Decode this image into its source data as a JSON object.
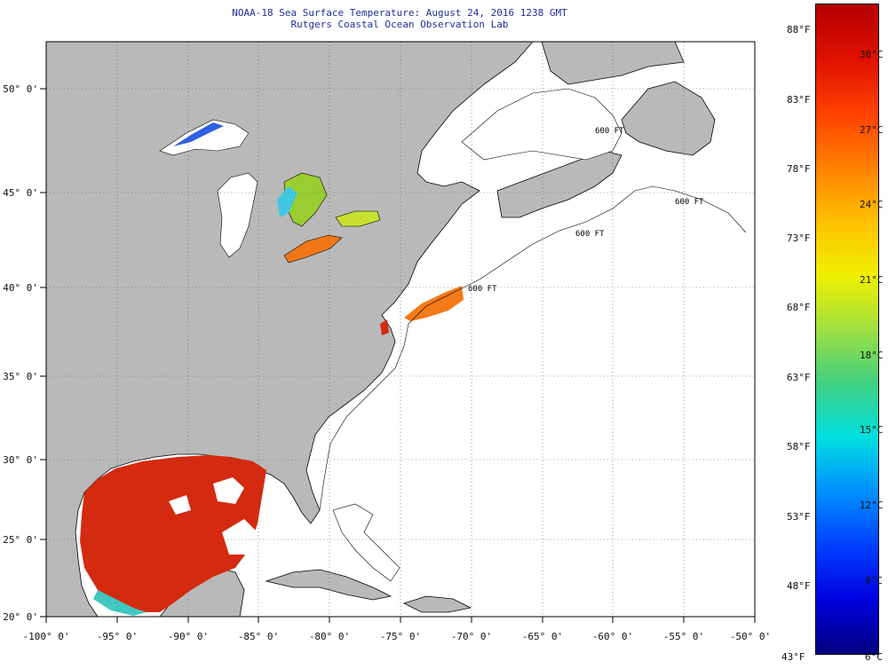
{
  "title": {
    "line1": "NOAA-18 Sea Surface Temperature:  August 24, 2016 1238 GMT",
    "line2": "Rutgers Coastal Ocean Observation Lab"
  },
  "axes": {
    "longitude_labels": [
      "-100° 0'",
      "-95° 0'",
      "-90° 0'",
      "-85° 0'",
      "-80° 0'",
      "-75° 0'",
      "-70° 0'",
      "-65° 0'",
      "-60° 0'",
      "-55° 0'",
      "-50° 0'"
    ],
    "latitude_labels": [
      "50° 0'",
      "45° 0'",
      "40° 0'",
      "35° 0'",
      "30° 0'",
      "25° 0'",
      "20° 0'"
    ]
  },
  "colorbar": {
    "fahrenheit_labels": [
      "88°F",
      "83°F",
      "78°F",
      "73°F",
      "68°F",
      "63°F",
      "58°F",
      "53°F",
      "48°F",
      "43°F"
    ],
    "celsius_labels": [
      "30°C",
      "27°C",
      "24°C",
      "21°C",
      "18°C",
      "15°C",
      "12°C",
      "9°C",
      "6°C"
    ],
    "colors": [
      "#b30000",
      "#e01000",
      "#ff4000",
      "#ff8000",
      "#ffc000",
      "#f0f000",
      "#a0e040",
      "#40d080",
      "#00e0e0",
      "#0090ff",
      "#0040ff",
      "#0000e0",
      "#000080"
    ]
  },
  "contour_labels": [
    "600 FT",
    "600 FT",
    "600 FT",
    "600 FT"
  ],
  "colors": {
    "land": "#b9b9b9",
    "ocean_no_data": "#ffffff",
    "title_text": "#1f2f9a",
    "warm_gulf": "#d42a10",
    "gulf_stream": "#f57a18",
    "lake_erie": "#f07818"
  }
}
